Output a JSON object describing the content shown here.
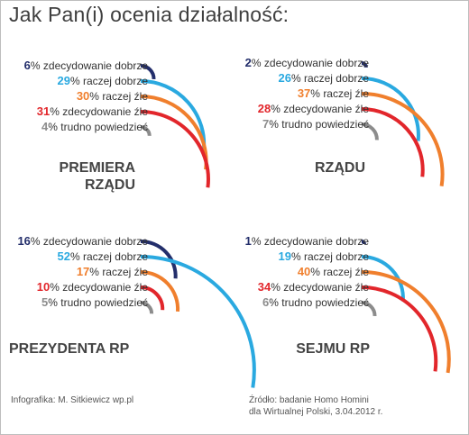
{
  "title": "Jak Pan(i) ocenia działalność:",
  "colors": {
    "zdecydowanie_dobrze": "#232e6b",
    "raczej_dobrze": "#2aa9e0",
    "raczej_zle": "#f07f2d",
    "zdecydowanie_zle": "#e2262b",
    "trudno": "#8c8c8c"
  },
  "chart_data": [
    {
      "type": "arc",
      "panel": "PREMIERA RZĄDU",
      "title_line1": "PREMIERA",
      "title_line2": "RZĄDU",
      "categories": [
        "zdecydowanie dobrze",
        "raczej dobrze",
        "raczej źle",
        "zdecydowanie źle",
        "trudno powiedzieć"
      ],
      "values": [
        6,
        29,
        30,
        31,
        4
      ],
      "value_labels": [
        "6",
        "29",
        "30",
        "31",
        "4"
      ],
      "units": "%"
    },
    {
      "type": "arc",
      "panel": "RZĄDU",
      "title_line1": "RZĄDU",
      "title_line2": "",
      "categories": [
        "zdecydowanie dobrze",
        "raczej dobrze",
        "raczej źle",
        "zdecydowanie źle",
        "trudno powiedzieć"
      ],
      "values": [
        2,
        26,
        37,
        28,
        7
      ],
      "value_labels": [
        "2",
        "26",
        "37",
        "28",
        "7"
      ],
      "units": "%"
    },
    {
      "type": "arc",
      "panel": "PREZYDENTA RP",
      "title_line1": "PREZYDENTA RP",
      "title_line2": "",
      "categories": [
        "zdecydowanie dobrze",
        "raczej dobrze",
        "raczej źle",
        "zdecydowanie źle",
        "trudno powiedzieć"
      ],
      "values": [
        16,
        52,
        17,
        10,
        5
      ],
      "value_labels": [
        "16",
        "52",
        "17",
        "10",
        "5"
      ],
      "units": "%"
    },
    {
      "type": "arc",
      "panel": "SEJMU RP",
      "title_line1": "SEJMU RP",
      "title_line2": "",
      "categories": [
        "zdecydowanie dobrze",
        "raczej dobrze",
        "raczej źle",
        "zdecydowanie źle",
        "trudno powiedzieć"
      ],
      "values": [
        1,
        19,
        40,
        34,
        6
      ],
      "value_labels": [
        "1",
        "19",
        "40",
        "34",
        "6"
      ],
      "units": "%"
    }
  ],
  "footer": {
    "credit": "Infografika: M. Sitkiewicz wp.pl",
    "source_line1": "Źródło: badanie Homo Homini",
    "source_line2": "dla Wirtualnej Polski, 3.04.2012 r."
  }
}
